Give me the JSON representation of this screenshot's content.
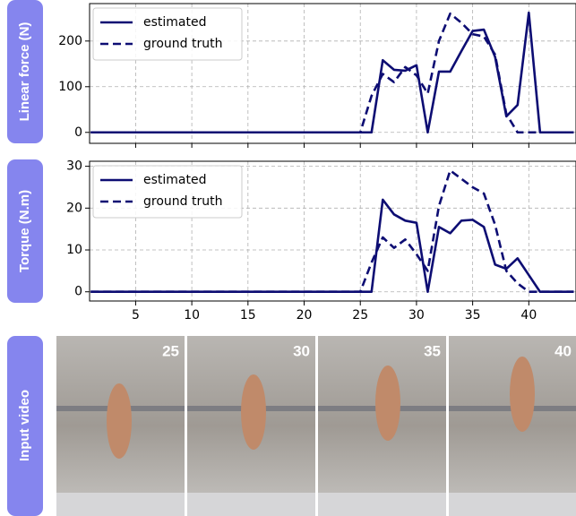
{
  "chart_data": [
    {
      "type": "line",
      "ylabel": "Linear force (N)",
      "x": [
        1,
        2,
        3,
        4,
        5,
        6,
        7,
        8,
        9,
        10,
        11,
        12,
        13,
        14,
        15,
        16,
        17,
        18,
        19,
        20,
        21,
        22,
        23,
        24,
        25,
        26,
        27,
        28,
        29,
        30,
        31,
        32,
        33,
        34,
        35,
        36,
        37,
        38,
        39,
        40,
        41,
        42,
        43,
        44
      ],
      "series": [
        {
          "name": "estimated",
          "color": "#0d0d73",
          "linestyle": "solid",
          "values": [
            0,
            0,
            0,
            0,
            0,
            0,
            0,
            0,
            0,
            0,
            0,
            0,
            0,
            0,
            0,
            0,
            0,
            0,
            0,
            0,
            0,
            0,
            0,
            0,
            0,
            0,
            158,
            137,
            135,
            147,
            0,
            133,
            133,
            178,
            222,
            225,
            165,
            35,
            60,
            262,
            0,
            0,
            0,
            0
          ]
        },
        {
          "name": "ground truth",
          "color": "#0d0d73",
          "linestyle": "dashed",
          "values": [
            0,
            0,
            0,
            0,
            0,
            0,
            0,
            0,
            0,
            0,
            0,
            0,
            0,
            0,
            0,
            0,
            0,
            0,
            0,
            0,
            0,
            0,
            0,
            0,
            0,
            80,
            128,
            110,
            143,
            125,
            85,
            200,
            260,
            240,
            215,
            210,
            170,
            40,
            0,
            0,
            0,
            0,
            0,
            0
          ]
        }
      ],
      "xlim": [
        0.9,
        44.2
      ],
      "xticks": [
        5,
        10,
        15,
        20,
        25,
        30,
        35,
        40
      ],
      "xticklabels": false,
      "ylim": [
        -24,
        282
      ],
      "yticks": [
        0,
        100,
        200
      ],
      "grid": true,
      "legend": "upper left"
    },
    {
      "type": "line",
      "ylabel": "Torque (N.m)",
      "x": [
        1,
        2,
        3,
        4,
        5,
        6,
        7,
        8,
        9,
        10,
        11,
        12,
        13,
        14,
        15,
        16,
        17,
        18,
        19,
        20,
        21,
        22,
        23,
        24,
        25,
        26,
        27,
        28,
        29,
        30,
        31,
        32,
        33,
        34,
        35,
        36,
        37,
        38,
        39,
        40,
        41,
        42,
        43,
        44
      ],
      "series": [
        {
          "name": "estimated",
          "color": "#0d0d73",
          "linestyle": "solid",
          "values": [
            0,
            0,
            0,
            0,
            0,
            0,
            0,
            0,
            0,
            0,
            0,
            0,
            0,
            0,
            0,
            0,
            0,
            0,
            0,
            0,
            0,
            0,
            0,
            0,
            0,
            0,
            22,
            18.5,
            17,
            16.5,
            0,
            15.5,
            14,
            17,
            17.2,
            15.5,
            6.5,
            5.5,
            8,
            4,
            0,
            0,
            0,
            0
          ]
        },
        {
          "name": "ground truth",
          "color": "#0d0d73",
          "linestyle": "dashed",
          "values": [
            0,
            0,
            0,
            0,
            0,
            0,
            0,
            0,
            0,
            0,
            0,
            0,
            0,
            0,
            0,
            0,
            0,
            0,
            0,
            0,
            0,
            0,
            0,
            0,
            0,
            7,
            13,
            10.5,
            12.5,
            9,
            5,
            20.5,
            29,
            27,
            25,
            23.5,
            16,
            5,
            2,
            0,
            0,
            0,
            0,
            0
          ]
        }
      ],
      "xlim": [
        0.9,
        44.2
      ],
      "xticks": [
        5,
        10,
        15,
        20,
        25,
        30,
        35,
        40
      ],
      "xticklabels": true,
      "ylim": [
        -2.2,
        31.2
      ],
      "yticks": [
        0,
        10,
        20,
        30
      ],
      "grid": true,
      "legend": "upper left"
    }
  ],
  "video": {
    "label": "Input video",
    "frames": [
      "25",
      "30",
      "35",
      "40"
    ]
  }
}
